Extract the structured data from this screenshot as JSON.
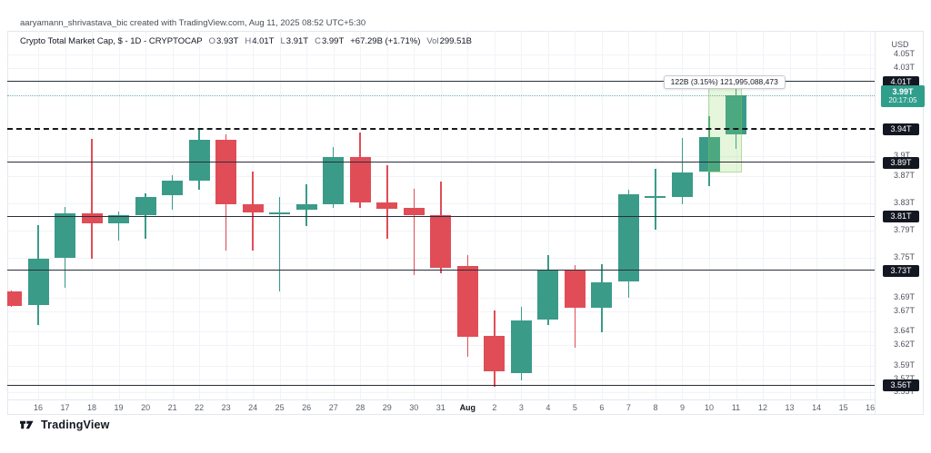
{
  "attribution": "aaryamann_shrivastava_bic created with TradingView.com, Aug 11, 2025 08:52 UTC+5:30",
  "legend": {
    "title": "Crypto Total Market Cap, $ - 1D - CRYPTOCAP",
    "ohlc": [
      {
        "label": "O",
        "value": "3.93T"
      },
      {
        "label": "H",
        "value": "4.01T"
      },
      {
        "label": "L",
        "value": "3.91T"
      },
      {
        "label": "C",
        "value": "3.99T"
      }
    ],
    "change": "+67.29B (+1.71%)",
    "vol_label": "Vol",
    "vol_value": "299.51B"
  },
  "price_axis_unit": "USD",
  "logo_text": "TradingView",
  "colors": {
    "up": "#3a9b89",
    "down": "#e14d57",
    "accent_text": "#2f9e8b",
    "label_bg": "#131722",
    "line": "#2a2e39",
    "highlight_fill": "rgba(141,212,96,0.22)",
    "highlight_border": "rgba(120,190,80,0.45)"
  },
  "chart_data": {
    "type": "candlestick",
    "title": "Crypto Total Market Cap, $ - 1D - CRYPTOCAP",
    "timeframe": "1D",
    "ylim": [
      3.55,
      4.06
    ],
    "y_axis_unit": "USD",
    "grid": true,
    "x_axis_labels": [
      "16",
      "17",
      "18",
      "19",
      "20",
      "21",
      "22",
      "23",
      "24",
      "25",
      "26",
      "27",
      "28",
      "29",
      "30",
      "31",
      "Aug",
      "2",
      "3",
      "4",
      "5",
      "6",
      "7",
      "8",
      "9",
      "10",
      "11",
      "12",
      "13",
      "14",
      "15",
      "16"
    ],
    "y_ticks": [
      "4.05T",
      "4.03T",
      "3.9T",
      "3.87T",
      "3.83T",
      "3.79T",
      "3.75T",
      "3.69T",
      "3.67T",
      "3.64T",
      "3.62T",
      "3.59T",
      "3.57T",
      "3.55T"
    ],
    "price_lines": [
      {
        "price": 4.01,
        "label": "4.01T",
        "style": "solid"
      },
      {
        "price": 3.94,
        "label": "3.94T",
        "style": "dashed"
      },
      {
        "price": 3.89,
        "label": "3.89T",
        "style": "solid"
      },
      {
        "price": 3.81,
        "label": "3.81T",
        "style": "solid"
      },
      {
        "price": 3.73,
        "label": "3.73T",
        "style": "solid"
      },
      {
        "price": 3.56,
        "label": "3.56T",
        "style": "solid"
      }
    ],
    "current_price": {
      "price": 3.99,
      "value": "3.99T",
      "countdown": "20:17:05"
    },
    "measurement": {
      "label": "122B (3.15%) 121,995,088,473",
      "from_day": "Aug 10",
      "to_day": "Aug 11",
      "from_price": 3.878,
      "to_price": 4.0
    },
    "highlight": {
      "from_index": 25,
      "to_index": 26,
      "price_top": 4.0,
      "price_bottom": 3.878
    },
    "candles": [
      {
        "i": -1,
        "date": "Jul 15",
        "open": 3.7,
        "high": 3.701,
        "low": 3.677,
        "close": 3.678
      },
      {
        "i": 0,
        "date": "Jul 16",
        "open": 3.68,
        "high": 3.798,
        "low": 3.65,
        "close": 3.748
      },
      {
        "i": 1,
        "date": "Jul 17",
        "open": 3.75,
        "high": 3.825,
        "low": 3.705,
        "close": 3.815
      },
      {
        "i": 2,
        "date": "Jul 18",
        "open": 3.815,
        "high": 3.925,
        "low": 3.748,
        "close": 3.8
      },
      {
        "i": 3,
        "date": "Jul 19",
        "open": 3.8,
        "high": 3.818,
        "low": 3.775,
        "close": 3.812
      },
      {
        "i": 4,
        "date": "Jul 20",
        "open": 3.812,
        "high": 3.845,
        "low": 3.778,
        "close": 3.84
      },
      {
        "i": 5,
        "date": "Jul 21",
        "open": 3.842,
        "high": 3.872,
        "low": 3.82,
        "close": 3.863
      },
      {
        "i": 6,
        "date": "Jul 22",
        "open": 3.863,
        "high": 3.94,
        "low": 3.85,
        "close": 3.924
      },
      {
        "i": 7,
        "date": "Jul 23",
        "open": 3.924,
        "high": 3.932,
        "low": 3.76,
        "close": 3.828
      },
      {
        "i": 8,
        "date": "Jul 24",
        "open": 3.828,
        "high": 3.877,
        "low": 3.76,
        "close": 3.817
      },
      {
        "i": 9,
        "date": "Jul 25",
        "open": 3.814,
        "high": 3.84,
        "low": 3.7,
        "close": 3.817
      },
      {
        "i": 10,
        "date": "Jul 26",
        "open": 3.82,
        "high": 3.858,
        "low": 3.796,
        "close": 3.829
      },
      {
        "i": 11,
        "date": "Jul 27",
        "open": 3.829,
        "high": 3.913,
        "low": 3.823,
        "close": 3.898
      },
      {
        "i": 12,
        "date": "Jul 28",
        "open": 3.898,
        "high": 3.935,
        "low": 3.823,
        "close": 3.831
      },
      {
        "i": 13,
        "date": "Jul 29",
        "open": 3.832,
        "high": 3.886,
        "low": 3.778,
        "close": 3.822
      },
      {
        "i": 14,
        "date": "Jul 30",
        "open": 3.823,
        "high": 3.852,
        "low": 3.724,
        "close": 3.813
      },
      {
        "i": 15,
        "date": "Jul 31",
        "open": 3.812,
        "high": 3.862,
        "low": 3.727,
        "close": 3.735
      },
      {
        "i": 16,
        "date": "Aug 1",
        "open": 3.737,
        "high": 3.753,
        "low": 3.603,
        "close": 3.633
      },
      {
        "i": 17,
        "date": "Aug 2",
        "open": 3.634,
        "high": 3.671,
        "low": 3.559,
        "close": 3.582
      },
      {
        "i": 18,
        "date": "Aug 3",
        "open": 3.579,
        "high": 3.677,
        "low": 3.568,
        "close": 3.657
      },
      {
        "i": 19,
        "date": "Aug 4",
        "open": 3.658,
        "high": 3.753,
        "low": 3.65,
        "close": 3.731
      },
      {
        "i": 20,
        "date": "Aug 5",
        "open": 3.731,
        "high": 3.739,
        "low": 3.616,
        "close": 3.675
      },
      {
        "i": 21,
        "date": "Aug 6",
        "open": 3.675,
        "high": 3.74,
        "low": 3.639,
        "close": 3.713
      },
      {
        "i": 22,
        "date": "Aug 7",
        "open": 3.715,
        "high": 3.85,
        "low": 3.69,
        "close": 3.843
      },
      {
        "i": 23,
        "date": "Aug 8",
        "open": 3.838,
        "high": 3.881,
        "low": 3.791,
        "close": 3.841
      },
      {
        "i": 24,
        "date": "Aug 9",
        "open": 3.839,
        "high": 3.927,
        "low": 3.829,
        "close": 3.875
      },
      {
        "i": 25,
        "date": "Aug 10",
        "open": 3.877,
        "high": 3.959,
        "low": 3.856,
        "close": 3.928
      },
      {
        "i": 26,
        "date": "Aug 11",
        "open": 3.932,
        "high": 4.01,
        "low": 3.91,
        "close": 3.99
      }
    ]
  }
}
